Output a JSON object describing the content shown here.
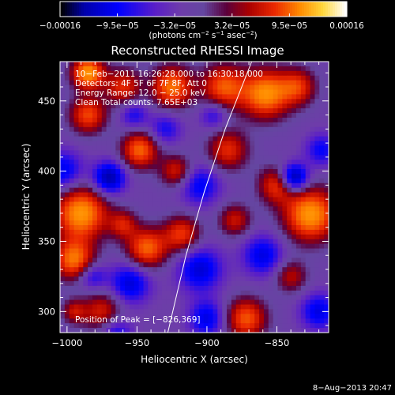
{
  "chart_data": {
    "type": "heatmap",
    "title": "Reconstructed RHESSI Image",
    "xlabel": "Heliocentric X (arcsec)",
    "ylabel": "Heliocentric Y (arcsec)",
    "xlim": [
      -1005,
      -813
    ],
    "ylim": [
      285,
      478
    ],
    "xticks": [
      -1000,
      -950,
      -900,
      -850
    ],
    "yticks": [
      300,
      350,
      400,
      450
    ],
    "xtick_labels": [
      "−1000",
      "−950",
      "−900",
      "−850"
    ],
    "ytick_labels": [
      "300",
      "350",
      "400",
      "450"
    ],
    "grid": false,
    "colorbar": {
      "min": -0.00016,
      "max": 0.00016,
      "tick_labels": [
        "−0.00016",
        "−9.5e−05",
        "−3.2e−05",
        "3.2e−05",
        "9.5e−05",
        "0.00016"
      ],
      "label_prefix": "(photons cm",
      "label_exp1": "−2",
      "label_mid": " s",
      "label_exp2": "−1",
      "label_mid2": " asec",
      "label_exp3": "−2",
      "label_suffix": ")"
    },
    "annotations": [
      "10−Feb−2011 16:26:28.000 to 16:30:18.000",
      "Detectors: 4F 5F 6F 7F 8F, Att 0",
      "Energy Range: 12.0 − 25.0 keV",
      "Clean    Total counts: 7.65E+03"
    ],
    "peak_label": "Position of Peak = [−826,369]",
    "limb_arc": [
      {
        "x": -928,
        "y": 285
      },
      {
        "x": -915,
        "y": 340
      },
      {
        "x": -902,
        "y": 385
      },
      {
        "x": -887,
        "y": 430
      },
      {
        "x": -868,
        "y": 478
      }
    ],
    "sources": [
      {
        "x": -985,
        "y": 470,
        "s": 8,
        "v": 1.0
      },
      {
        "x": -985,
        "y": 440,
        "s": 9,
        "v": 0.7
      },
      {
        "x": -990,
        "y": 370,
        "s": 13,
        "v": 1.0
      },
      {
        "x": -995,
        "y": 337,
        "s": 10,
        "v": 0.85
      },
      {
        "x": -975,
        "y": 300,
        "s": 10,
        "v": 0.55
      },
      {
        "x": -960,
        "y": 460,
        "s": 9,
        "v": 0.6
      },
      {
        "x": -948,
        "y": 415,
        "s": 9,
        "v": 0.8
      },
      {
        "x": -943,
        "y": 345,
        "s": 10,
        "v": 0.8
      },
      {
        "x": -960,
        "y": 362,
        "s": 7,
        "v": 0.5
      },
      {
        "x": -925,
        "y": 460,
        "s": 10,
        "v": 0.85
      },
      {
        "x": -922,
        "y": 400,
        "s": 8,
        "v": 0.55
      },
      {
        "x": -918,
        "y": 355,
        "s": 9,
        "v": 0.65
      },
      {
        "x": -888,
        "y": 460,
        "s": 11,
        "v": 0.75
      },
      {
        "x": -885,
        "y": 415,
        "s": 10,
        "v": 0.6
      },
      {
        "x": -880,
        "y": 365,
        "s": 8,
        "v": 0.5
      },
      {
        "x": -872,
        "y": 295,
        "s": 10,
        "v": 0.75
      },
      {
        "x": -858,
        "y": 455,
        "s": 12,
        "v": 0.95
      },
      {
        "x": -826,
        "y": 369,
        "s": 13,
        "v": 1.0
      },
      {
        "x": -850,
        "y": 390,
        "s": 9,
        "v": 0.65
      },
      {
        "x": -835,
        "y": 460,
        "s": 9,
        "v": 0.6
      },
      {
        "x": -840,
        "y": 325,
        "s": 8,
        "v": 0.45
      },
      {
        "x": -995,
        "y": 300,
        "s": 6,
        "v": 0.45
      },
      {
        "x": -1003,
        "y": 400,
        "s": 10,
        "v": -0.55
      },
      {
        "x": -970,
        "y": 395,
        "s": 8,
        "v": -0.8
      },
      {
        "x": -982,
        "y": 325,
        "s": 7,
        "v": -0.45
      },
      {
        "x": -955,
        "y": 320,
        "s": 10,
        "v": -0.6
      },
      {
        "x": -952,
        "y": 440,
        "s": 7,
        "v": -0.4
      },
      {
        "x": -930,
        "y": 430,
        "s": 8,
        "v": -0.4
      },
      {
        "x": -905,
        "y": 390,
        "s": 10,
        "v": -0.5
      },
      {
        "x": -905,
        "y": 330,
        "s": 11,
        "v": -0.6
      },
      {
        "x": -900,
        "y": 295,
        "s": 9,
        "v": -0.55
      },
      {
        "x": -895,
        "y": 440,
        "s": 7,
        "v": -0.4
      },
      {
        "x": -838,
        "y": 395,
        "s": 7,
        "v": -0.95
      },
      {
        "x": -860,
        "y": 340,
        "s": 10,
        "v": -0.55
      },
      {
        "x": -818,
        "y": 415,
        "s": 8,
        "v": -0.45
      },
      {
        "x": -820,
        "y": 300,
        "s": 9,
        "v": -0.55
      },
      {
        "x": -965,
        "y": 285,
        "s": 8,
        "v": -0.45
      }
    ]
  },
  "footer": {
    "date_stamp": "8−Aug−2013 20:47"
  }
}
